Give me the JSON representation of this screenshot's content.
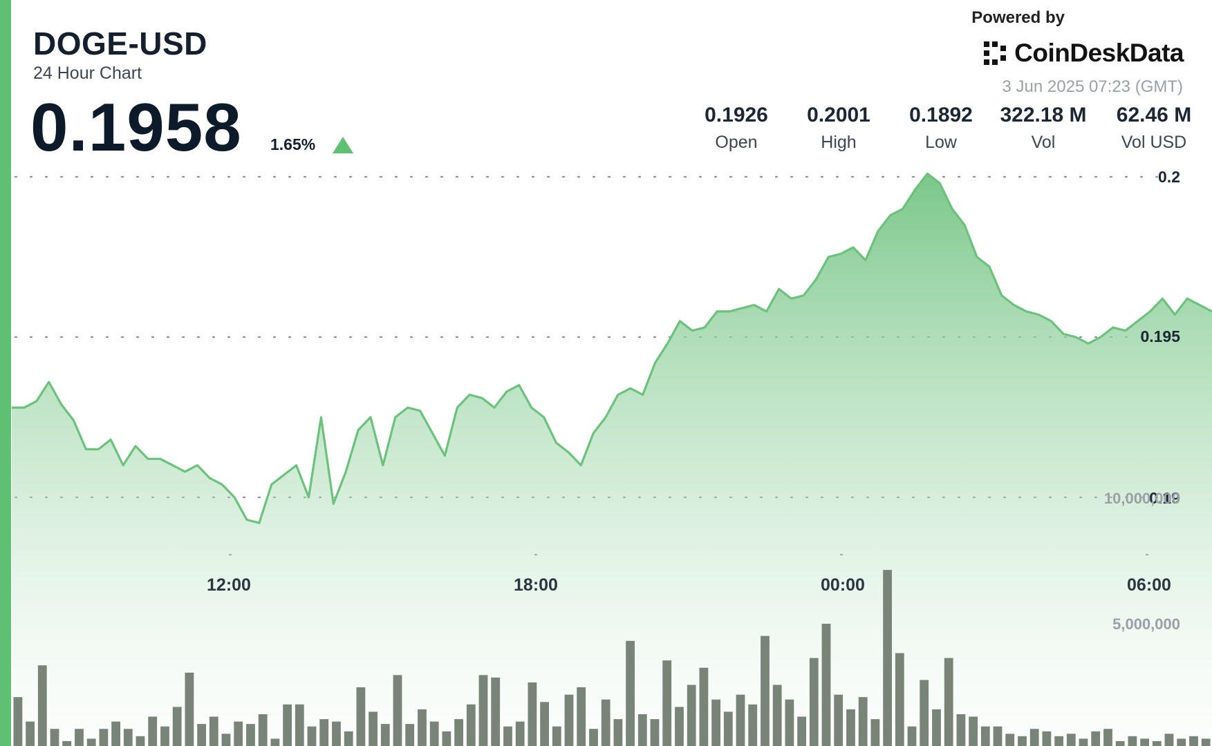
{
  "header": {
    "pair": "DOGE-USD",
    "subtitle": "24 Hour Chart",
    "price": "0.1958",
    "change_pct": "1.65%",
    "change_direction": "up"
  },
  "branding": {
    "powered_by": "Powered by",
    "name": "CoinDeskData",
    "timestamp": "3 Jun 2025 07:23 (GMT)"
  },
  "stats": [
    {
      "value": "0.1926",
      "label": "Open"
    },
    {
      "value": "0.2001",
      "label": "High"
    },
    {
      "value": "0.1892",
      "label": "Low"
    },
    {
      "value": "322.18 M",
      "label": "Vol"
    },
    {
      "value": "62.46 M",
      "label": "Vol USD"
    }
  ],
  "colors": {
    "accent": "#5fbf72",
    "line": "#6cc27c",
    "area_top": "#74c484",
    "volume_bar": "#6e7a6c",
    "grid_dots": "#8a8f94"
  },
  "chart_data": {
    "type": "area",
    "title": "DOGE-USD",
    "x_ticks": [
      "12:00",
      "18:00",
      "00:00",
      "06:00"
    ],
    "y_price_ticks": [
      "0.2",
      "0.195",
      "0.19"
    ],
    "y_volume_ticks": [
      "10,000,000",
      "5,000,000"
    ],
    "price_ylim": [
      0.187,
      0.2
    ],
    "volume_ylim": [
      0,
      12000000
    ],
    "grid": true,
    "series": [
      {
        "values": [
          0.1928,
          0.1928,
          0.193,
          0.1936,
          0.1929,
          0.1924,
          0.1915,
          0.1915,
          0.1918,
          0.191,
          0.1916,
          0.1912,
          0.1912,
          0.191,
          0.1908,
          0.191,
          0.1906,
          0.1904,
          0.19,
          0.1893,
          0.1892,
          0.1904,
          0.1907,
          0.191,
          0.19,
          0.1925,
          0.1898,
          0.1908,
          0.1921,
          0.1925,
          0.191,
          0.1925,
          0.1928,
          0.1927,
          0.192,
          0.1913,
          0.1928,
          0.1932,
          0.1931,
          0.1928,
          0.1933,
          0.1935,
          0.1928,
          0.1925,
          0.1917,
          0.1914,
          0.191,
          0.192,
          0.1925,
          0.1932,
          0.1934,
          0.1932,
          0.1942,
          0.1948,
          0.1955,
          0.1952,
          0.1953,
          0.1958,
          0.1958,
          0.1959,
          0.196,
          0.1958,
          0.1965,
          0.1962,
          0.1963,
          0.1968,
          0.1975,
          0.1976,
          0.1978,
          0.1974,
          0.1983,
          0.1988,
          0.199,
          0.1996,
          0.2001,
          0.1998,
          0.199,
          0.1985,
          0.1975,
          0.1972,
          0.1963,
          0.196,
          0.1958,
          0.1957,
          0.1955,
          0.1951,
          0.195,
          0.1948,
          0.195,
          0.1953,
          0.1952,
          0.1955,
          0.1958,
          0.1962,
          0.1957,
          0.1962,
          0.196,
          0.1958
        ]
      }
    ],
    "volume": [
      2000000,
      1000000,
      3300000,
      700000,
      200000,
      700000,
      300000,
      700000,
      1000000,
      700000,
      400000,
      1200000,
      800000,
      1600000,
      3000000,
      900000,
      1200000,
      500000,
      1000000,
      900000,
      1300000,
      300000,
      1700000,
      1700000,
      800000,
      1100000,
      1000000,
      600000,
      2400000,
      1400000,
      900000,
      2900000,
      900000,
      1500000,
      1000000,
      600000,
      1100000,
      1700000,
      2900000,
      2800000,
      800000,
      1000000,
      2600000,
      1800000,
      800000,
      2100000,
      2400000,
      700000,
      1900000,
      1100000,
      4300000,
      1300000,
      1100000,
      3500000,
      1600000,
      2500000,
      3200000,
      1900000,
      1400000,
      2100000,
      1700000,
      4500000,
      2500000,
      1900000,
      1200000,
      3600000,
      5000000,
      2100000,
      1500000,
      2000000,
      1100000,
      7200000,
      3800000,
      800000,
      2700000,
      1500000,
      3600000,
      1300000,
      1200000,
      800000,
      800000,
      500000,
      400000,
      700000,
      600000,
      400000,
      500000,
      300000,
      600000,
      700000,
      200000,
      400000,
      300000,
      200000,
      500000,
      300000,
      400000,
      300000
    ]
  }
}
